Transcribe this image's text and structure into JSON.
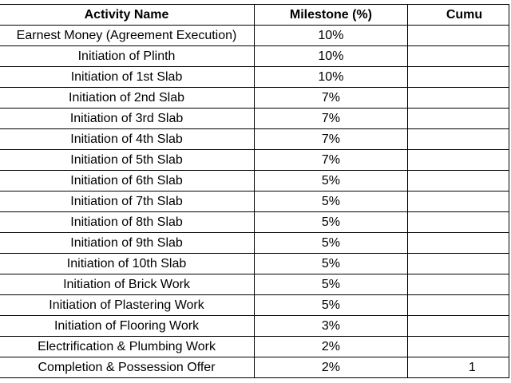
{
  "table": {
    "headers": {
      "activity": "Activity Name",
      "milestone": "Milestone (%)",
      "cumulative": "Cumu"
    },
    "rows": [
      {
        "activity": "Earnest Money (Agreement Execution)",
        "milestone": "10%",
        "cumulative": ""
      },
      {
        "activity": "Initiation of Plinth",
        "milestone": "10%",
        "cumulative": ""
      },
      {
        "activity": "Initiation of 1st Slab",
        "milestone": "10%",
        "cumulative": ""
      },
      {
        "activity": "Initiation of 2nd Slab",
        "milestone": "7%",
        "cumulative": ""
      },
      {
        "activity": "Initiation of 3rd Slab",
        "milestone": "7%",
        "cumulative": ""
      },
      {
        "activity": "Initiation of 4th Slab",
        "milestone": "7%",
        "cumulative": ""
      },
      {
        "activity": "Initiation of 5th Slab",
        "milestone": "7%",
        "cumulative": ""
      },
      {
        "activity": "Initiation of 6th Slab",
        "milestone": "5%",
        "cumulative": ""
      },
      {
        "activity": "Initiation of 7th Slab",
        "milestone": "5%",
        "cumulative": ""
      },
      {
        "activity": "Initiation of 8th Slab",
        "milestone": "5%",
        "cumulative": ""
      },
      {
        "activity": "Initiation of 9th Slab",
        "milestone": "5%",
        "cumulative": ""
      },
      {
        "activity": "Initiation of 10th Slab",
        "milestone": "5%",
        "cumulative": ""
      },
      {
        "activity": "Initiation of Brick Work",
        "milestone": "5%",
        "cumulative": ""
      },
      {
        "activity": "Initiation of Plastering Work",
        "milestone": "5%",
        "cumulative": ""
      },
      {
        "activity": "Initiation of Flooring Work",
        "milestone": "3%",
        "cumulative": ""
      },
      {
        "activity": "Electrification & Plumbing Work",
        "milestone": "2%",
        "cumulative": ""
      },
      {
        "activity": "Completion & Possession Offer",
        "milestone": "2%",
        "cumulative": "1"
      }
    ]
  }
}
